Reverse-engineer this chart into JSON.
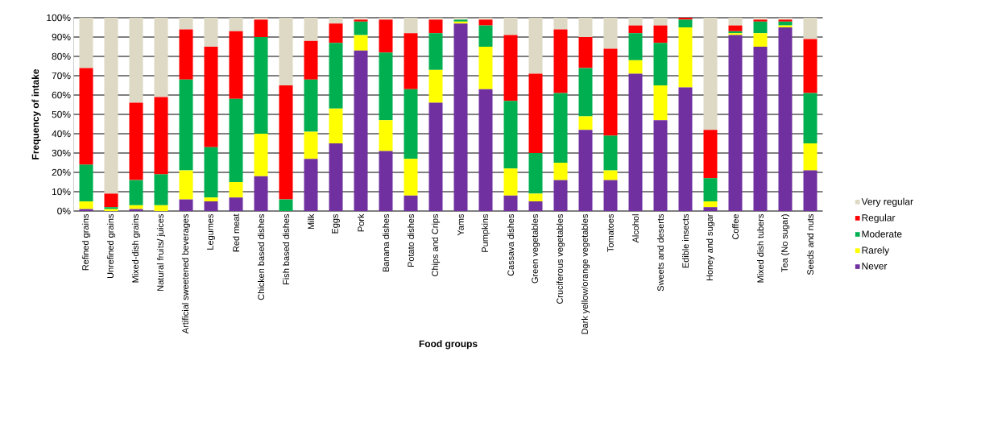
{
  "chart_data": {
    "type": "bar",
    "stacked": true,
    "xlabel": "Food groups",
    "ylabel": "Frequency of intake",
    "categories": [
      "Refined grains",
      "Unrefined grains",
      "Mixed-dish grains",
      "Natural fruits/ juices",
      "Artificial sweetened beverages",
      "Legumes",
      "Red meat",
      "Chicken based dishes",
      "Fish based dishes",
      "Milk",
      "Eggs",
      "Pork",
      "Banana dishes",
      "Potato dishes",
      "Chips and Crips",
      "Yams",
      "Pumpkins",
      "Cassava dishes",
      "Green vegetables",
      "Cruciferous vegetables",
      "Dark yellow/orange vegetables",
      "Tomatoes",
      "Alcohol",
      "Sweets and deserts",
      "Edible insects",
      "Honey and sugar",
      "Coffee",
      "Mixed dish tubers",
      "Tea (No sugar)",
      "Seeds and nuts"
    ],
    "series": [
      {
        "name": "Never",
        "color": "#7030a0",
        "values": [
          1,
          0,
          1,
          0,
          6,
          5,
          7,
          18,
          0,
          27,
          35,
          83,
          31,
          8,
          56,
          97,
          63,
          8,
          5,
          16,
          42,
          16,
          71,
          47,
          64,
          2,
          91,
          85,
          95,
          21
        ]
      },
      {
        "name": "Rarely",
        "color": "#ffff00",
        "values": [
          4,
          1,
          2,
          3,
          15,
          2,
          8,
          22,
          0,
          14,
          18,
          8,
          16,
          19,
          17,
          1,
          22,
          14,
          4,
          9,
          7,
          5,
          7,
          18,
          31,
          3,
          1,
          7,
          1,
          14
        ]
      },
      {
        "name": "Moderate",
        "color": "#00b050",
        "values": [
          19,
          1,
          13,
          16,
          47,
          26,
          43,
          50,
          6,
          27,
          34,
          7,
          35,
          36,
          19,
          1,
          11,
          35,
          21,
          36,
          25,
          18,
          14,
          22,
          4,
          12,
          1,
          6,
          2,
          26
        ]
      },
      {
        "name": "Regular",
        "color": "#ff0000",
        "values": [
          50,
          7,
          40,
          40,
          26,
          52,
          35,
          9,
          59,
          20,
          10,
          1,
          17,
          29,
          7,
          0,
          3,
          34,
          41,
          33,
          16,
          45,
          4,
          9,
          1,
          25,
          3,
          1,
          1,
          28
        ]
      },
      {
        "name": "Very regular",
        "color": "#ddd9c4",
        "values": [
          26,
          91,
          44,
          41,
          6,
          15,
          7,
          1,
          35,
          12,
          3,
          1,
          1,
          8,
          1,
          1,
          1,
          9,
          29,
          6,
          10,
          16,
          4,
          4,
          0,
          58,
          4,
          1,
          1,
          11
        ]
      }
    ],
    "ylim": [
      0,
      100
    ],
    "yticks": [
      {
        "value": 0,
        "label": "0%"
      },
      {
        "value": 10,
        "label": "10%"
      },
      {
        "value": 20,
        "label": "20%"
      },
      {
        "value": 30,
        "label": "30%"
      },
      {
        "value": 40,
        "label": "40%"
      },
      {
        "value": 50,
        "label": "50%"
      },
      {
        "value": 60,
        "label": "60%"
      },
      {
        "value": 70,
        "label": "70%"
      },
      {
        "value": 80,
        "label": "80%"
      },
      {
        "value": 90,
        "label": "90%"
      },
      {
        "value": 100,
        "label": "100%"
      }
    ],
    "grid": "y",
    "legend": "right"
  }
}
